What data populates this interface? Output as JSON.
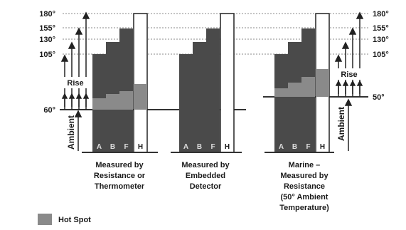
{
  "temperatures": {
    "left_ticks": [
      "180°",
      "155°",
      "130°",
      "105°"
    ],
    "right_ticks": [
      "180°",
      "155°",
      "130°",
      "105°"
    ],
    "ambient_left": "60°",
    "ambient_right": "50°"
  },
  "labels": {
    "rise": "Rise",
    "ambient": "Ambient"
  },
  "insulation_classes": [
    "A",
    "B",
    "F",
    "H"
  ],
  "groups": [
    {
      "caption": [
        "Measured by",
        "Resistance or",
        "Thermometer"
      ]
    },
    {
      "caption": [
        "Measured by",
        "Embedded",
        "Detector"
      ]
    },
    {
      "caption": [
        "Marine –",
        "Measured by",
        "Resistance",
        "(50° Ambient",
        "Temperature)"
      ]
    }
  ],
  "legend": {
    "label": "Hot Spot",
    "color": "#8a8a8a"
  },
  "colors": {
    "bar": "#4a4a4a",
    "bar_h": "#ffffff",
    "hotspot": "#8a8a8a",
    "line": "#333333"
  }
}
